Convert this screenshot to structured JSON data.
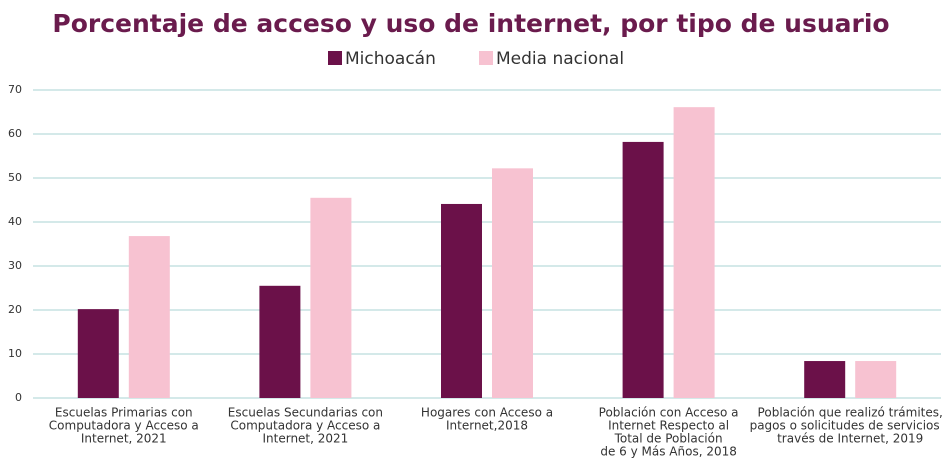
{
  "chart_data": {
    "type": "bar",
    "title": "Porcentaje de acceso y uso de internet, por tipo de usuario",
    "categories": [
      [
        "Escuelas Primarias con",
        "Computadora y Acceso a",
        "Internet, 2021"
      ],
      [
        "Escuelas Secundarias con",
        "Computadora y Acceso a",
        "Internet, 2021"
      ],
      [
        "Hogares con Acceso a",
        "Internet,2018"
      ],
      [
        "Población con Acceso a",
        "Internet Respecto al",
        "Total de Población",
        "de 6 y Más Años, 2018"
      ],
      [
        "Población que realizó trámites,",
        "pagos o solicitudes de servicios a",
        "través de Internet, 2019"
      ]
    ],
    "series": [
      {
        "name": "Michoacán",
        "color": "#6b1149",
        "values": [
          20.2,
          25.5,
          44.1,
          58.2,
          8.4
        ]
      },
      {
        "name": "Media nacional",
        "color": "#f7c2d1",
        "values": [
          36.8,
          45.5,
          52.2,
          66.1,
          8.4
        ]
      }
    ],
    "ylim": [
      0,
      70
    ],
    "yticks": [
      0,
      10,
      20,
      30,
      40,
      50,
      60,
      70
    ],
    "grid": true,
    "legend": "top"
  }
}
